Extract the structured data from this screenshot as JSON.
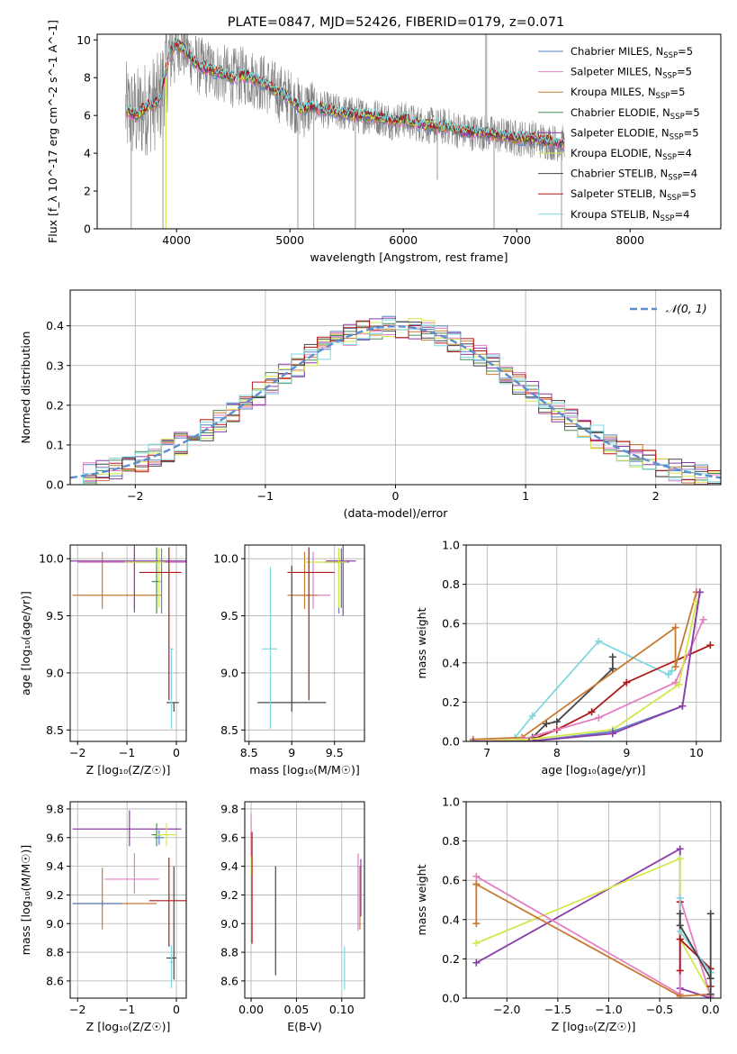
{
  "chart_data": [
    {
      "id": "spectrum",
      "type": "line",
      "title": "PLATE=0847, MJD=52426, FIBERID=0179, z=0.071",
      "xlabel": "wavelength [Angstrom, rest frame]",
      "ylabel": "Flux [f_λ 10^-17 erg cm^-2 s^-1 A^-1]",
      "xlim": [
        3300,
        8800
      ],
      "ylim": [
        0,
        10.3
      ],
      "xticks": [
        4000,
        5000,
        6000,
        7000,
        8000
      ],
      "yticks": [
        0,
        2,
        4,
        6,
        8,
        10
      ],
      "grid": false,
      "legend_position": "top-right",
      "observed_color": "#808080",
      "model_continuum": {
        "x": [
          3550,
          3650,
          3750,
          3850,
          3900,
          3950,
          4000,
          4100,
          4200,
          4300,
          4400,
          4500,
          4600,
          4700,
          4800,
          4900,
          5000,
          5100,
          5200,
          5300,
          5400,
          5500,
          5600,
          5700,
          5800,
          5900,
          6000,
          6100,
          6200,
          6300,
          6400,
          6500,
          6600,
          6700,
          6800,
          6900,
          7000,
          7100,
          7200,
          7300,
          7400
        ],
        "y": [
          6.3,
          6.0,
          6.5,
          6.8,
          8.2,
          9.5,
          9.8,
          9.3,
          8.6,
          8.4,
          8.2,
          8.0,
          8.1,
          7.9,
          7.6,
          7.2,
          6.9,
          6.3,
          6.5,
          6.3,
          6.2,
          6.1,
          6.0,
          6.0,
          5.9,
          5.7,
          5.8,
          5.6,
          5.5,
          5.4,
          5.4,
          5.2,
          5.1,
          5.1,
          5.0,
          4.9,
          4.8,
          4.8,
          4.7,
          4.6,
          4.5
        ]
      },
      "legend": [
        {
          "label": "Chabrier MILES, N",
          "sub": "SSP",
          "tail": "=5",
          "color": "#5b84c4"
        },
        {
          "label": "Salpeter MILES, N",
          "sub": "SSP",
          "tail": "=5",
          "color": "#e57ec2"
        },
        {
          "label": "Kroupa MILES, N",
          "sub": "SSP",
          "tail": "=5",
          "color": "#c77a32"
        },
        {
          "label": "Chabrier ELODIE, N",
          "sub": "SSP",
          "tail": "=5",
          "color": "#4a8c55"
        },
        {
          "label": "Salpeter ELODIE, N",
          "sub": "SSP",
          "tail": "=5",
          "color": "#8c3da8"
        },
        {
          "label": "Kroupa ELODIE, N",
          "sub": "SSP",
          "tail": "=4",
          "color": "#d4e84a"
        },
        {
          "label": "Chabrier STELIB, N",
          "sub": "SSP",
          "tail": "=4",
          "color": "#444444"
        },
        {
          "label": "Salpeter STELIB, N",
          "sub": "SSP",
          "tail": "=5",
          "color": "#b01818"
        },
        {
          "label": "Kroupa STELIB, N",
          "sub": "SSP",
          "tail": "=4",
          "color": "#7fd8e0"
        }
      ]
    },
    {
      "id": "residuals",
      "type": "histogram",
      "xlabel": "(data-model)/error",
      "ylabel": "Normed distribution",
      "xlim": [
        -2.5,
        2.5
      ],
      "ylim": [
        0,
        0.49
      ],
      "xticks": [
        -2,
        -1,
        0,
        1,
        2
      ],
      "yticks": [
        0.0,
        0.1,
        0.2,
        0.3,
        0.4
      ],
      "grid": true,
      "legend_position": "top-right",
      "legend_label": "𝒩(0, 1)",
      "gaussian_color": "#5b8fd0",
      "bin_width": 0.1,
      "series_colors": [
        "#5b84c4",
        "#e57ec2",
        "#c77a32",
        "#4a8c55",
        "#8c3da8",
        "#d4e84a",
        "#444444",
        "#b01818",
        "#7fd8e0"
      ]
    },
    {
      "id": "age-vs-z",
      "type": "errorbar",
      "xlabel": "Z [log₁₀(Z/Z☉)]",
      "ylabel": "age  [log₁₀(age/yr)]",
      "xlim": [
        -2.15,
        0.2
      ],
      "ylim": [
        8.4,
        10.12
      ],
      "xticks": [
        -2,
        -1,
        0
      ],
      "yticks": [
        8.5,
        9.0,
        9.5,
        10.0
      ],
      "grid": true,
      "points": [
        {
          "color": "#5b84c4",
          "x": -0.3,
          "xerr": [
            1.7,
            0.45
          ],
          "y": 9.97,
          "yerr": [
            0.45,
            0.12
          ]
        },
        {
          "color": "#e57ec2",
          "x": -0.85,
          "xerr": [
            1.15,
            1.05
          ],
          "y": 9.97,
          "yerr": [
            0.4,
            0.12
          ]
        },
        {
          "color": "#c77a32",
          "x": -1.5,
          "xerr": [
            0.6,
            1.2
          ],
          "y": 9.68,
          "yerr": [
            0.12,
            0.38
          ]
        },
        {
          "color": "#4a8c55",
          "x": -0.4,
          "xerr": [
            0.1,
            0.08
          ],
          "y": 9.8,
          "yerr": [
            0.28,
            0.3
          ]
        },
        {
          "color": "#8c3da8",
          "x": -0.85,
          "xerr": [
            1.3,
            1.1
          ],
          "y": 9.98,
          "yerr": [
            0.45,
            0.14
          ]
        },
        {
          "color": "#d4e84a",
          "x": -0.35,
          "xerr": [
            0.7,
            0.12
          ],
          "y": 9.97,
          "yerr": [
            0.4,
            0.12
          ]
        },
        {
          "color": "#444444",
          "x": -0.05,
          "xerr": [
            0.15,
            0.1
          ],
          "y": 8.74,
          "yerr": [
            0.08,
            0.0
          ]
        },
        {
          "color": "#b01818",
          "x": -0.15,
          "xerr": [
            0.6,
            0.25
          ],
          "y": 9.88,
          "yerr": [
            1.12,
            0.22
          ]
        },
        {
          "color": "#7fd8e0",
          "x": -0.1,
          "xerr": [
            0.05,
            0.04
          ],
          "y": 9.21,
          "yerr": [
            0.7,
            0.0
          ]
        }
      ]
    },
    {
      "id": "age-vs-mass",
      "type": "errorbar",
      "xlabel": "mass [log₁₀(M/M☉)]",
      "ylabel": "",
      "xlim": [
        8.45,
        9.85
      ],
      "ylim": [
        8.4,
        10.12
      ],
      "xticks": [
        8.5,
        9.0,
        9.5
      ],
      "yticks": [
        8.5,
        9.0,
        9.5,
        10.0
      ],
      "grid": true,
      "points": [
        {
          "color": "#5b84c4",
          "x": 9.55,
          "xerr": [
            0.2,
            0.12
          ],
          "y": 9.97,
          "yerr": [
            0.45,
            0.12
          ]
        },
        {
          "color": "#e57ec2",
          "x": 9.25,
          "xerr": [
            0.15,
            0.2
          ],
          "y": 9.68,
          "yerr": [
            0.12,
            0.38
          ]
        },
        {
          "color": "#c77a32",
          "x": 9.15,
          "xerr": [
            0.2,
            0.15
          ],
          "y": 9.68,
          "yerr": [
            0.12,
            0.38
          ]
        },
        {
          "color": "#4a8c55",
          "x": 9.58,
          "xerr": [
            0.15,
            0.05
          ],
          "y": 9.97,
          "yerr": [
            0.4,
            0.12
          ]
        },
        {
          "color": "#8c3da8",
          "x": 9.6,
          "xerr": [
            0.2,
            0.15
          ],
          "y": 9.98,
          "yerr": [
            0.48,
            0.14
          ]
        },
        {
          "color": "#d4e84a",
          "x": 9.55,
          "xerr": [
            0.4,
            0.1
          ],
          "y": 9.97,
          "yerr": [
            0.4,
            0.12
          ]
        },
        {
          "color": "#444444",
          "x": 9.0,
          "xerr": [
            0.4,
            0.4
          ],
          "y": 8.74,
          "yerr": [
            0.08,
            1.2
          ]
        },
        {
          "color": "#b01818",
          "x": 9.2,
          "xerr": [
            0.25,
            0.3
          ],
          "y": 9.88,
          "yerr": [
            1.12,
            0.22
          ]
        },
        {
          "color": "#7fd8e0",
          "x": 8.75,
          "xerr": [
            0.1,
            0.08
          ],
          "y": 9.21,
          "yerr": [
            0.7,
            0.72
          ]
        }
      ]
    },
    {
      "id": "weight-vs-age",
      "type": "line",
      "xlabel": "age  [log₁₀(age/yr)]",
      "ylabel": "mass weight",
      "xlim": [
        6.7,
        10.35
      ],
      "ylim": [
        0,
        1.0
      ],
      "xticks": [
        7,
        8,
        9,
        10
      ],
      "yticks": [
        0.0,
        0.2,
        0.4,
        0.6,
        0.8,
        1.0
      ],
      "grid": true,
      "series": [
        {
          "color": "#444444",
          "x": [
            7.65,
            7.85,
            8.0,
            8.8,
            8.8
          ],
          "y": [
            0.02,
            0.09,
            0.1,
            0.37,
            0.43
          ]
        },
        {
          "color": "#7fd8e0",
          "x": [
            7.4,
            7.65,
            8.6,
            9.6,
            9.65
          ],
          "y": [
            0.02,
            0.13,
            0.51,
            0.34,
            0.36
          ]
        },
        {
          "color": "#b01818",
          "x": [
            7.65,
            8.0,
            8.5,
            9.0,
            10.2
          ],
          "y": [
            0.01,
            0.06,
            0.15,
            0.3,
            0.49
          ]
        },
        {
          "color": "#c77a32",
          "x": [
            6.8,
            7.5,
            9.7,
            9.7,
            10.0
          ],
          "y": [
            0.01,
            0.02,
            0.58,
            0.38,
            0.76
          ]
        },
        {
          "color": "#e57ec2",
          "x": [
            6.8,
            7.5,
            8.6,
            9.7,
            10.1
          ],
          "y": [
            0.0,
            0.01,
            0.12,
            0.3,
            0.62
          ]
        },
        {
          "color": "#d4e84a",
          "x": [
            6.8,
            7.6,
            8.8,
            9.75,
            10.0
          ],
          "y": [
            0.0,
            0.01,
            0.06,
            0.29,
            0.71
          ]
        },
        {
          "color": "#5b84c4",
          "x": [
            6.8,
            7.6,
            8.8,
            9.8,
            10.05
          ],
          "y": [
            0.0,
            0.0,
            0.05,
            0.18,
            0.76
          ]
        },
        {
          "color": "#8c3da8",
          "x": [
            6.8,
            7.6,
            8.8,
            9.8,
            10.05
          ],
          "y": [
            0.0,
            0.0,
            0.04,
            0.18,
            0.76
          ]
        }
      ]
    },
    {
      "id": "mass-vs-z",
      "type": "errorbar",
      "xlabel": "Z [log₁₀(Z/Z☉)]",
      "ylabel": "mass [log₁₀(M/M☉)]",
      "xlim": [
        -2.15,
        0.2
      ],
      "ylim": [
        8.48,
        9.85
      ],
      "xticks": [
        -2,
        -1,
        0
      ],
      "yticks": [
        8.6,
        8.8,
        9.0,
        9.2,
        9.4,
        9.6,
        9.8
      ],
      "grid": true,
      "points": [
        {
          "color": "#5b84c4",
          "x": -0.35,
          "xerr": [
            0.1,
            0.1
          ],
          "y": 9.6,
          "yerr": [
            0.05,
            0.05
          ]
        },
        {
          "color": "#e57ec2",
          "x": -0.85,
          "xerr": [
            0.6,
            0.5
          ],
          "y": 9.31,
          "yerr": [
            0.1,
            0.18
          ]
        },
        {
          "color": "#c77a32",
          "x": -1.5,
          "xerr": [
            0.6,
            1.1
          ],
          "y": 9.14,
          "yerr": [
            0.18,
            0.25
          ]
        },
        {
          "color": "#4a8c55",
          "x": -0.4,
          "xerr": [
            0.1,
            0.1
          ],
          "y": 9.62,
          "yerr": [
            0.08,
            0.08
          ]
        },
        {
          "color": "#8c3da8",
          "x": -0.95,
          "xerr": [
            1.15,
            1.05
          ],
          "y": 9.66,
          "yerr": [
            0.12,
            0.13
          ]
        },
        {
          "color": "#d4e84a",
          "x": -0.2,
          "xerr": [
            0.2,
            0.2
          ],
          "y": 9.62,
          "yerr": [
            0.08,
            0.08
          ]
        },
        {
          "color": "#444444",
          "x": -0.05,
          "xerr": [
            0.15,
            0.05
          ],
          "y": 8.76,
          "yerr": [
            0.15,
            0.64
          ]
        },
        {
          "color": "#b01818",
          "x": -0.15,
          "xerr": [
            0.4,
            0.35
          ],
          "y": 9.16,
          "yerr": [
            0.32,
            0.3
          ]
        },
        {
          "color": "#7fd8e0",
          "x": -0.1,
          "xerr": [
            0.04,
            0.04
          ],
          "y": 8.73,
          "yerr": [
            0.18,
            0.12
          ]
        },
        {
          "color": "#5b84c4",
          "x": -1.5,
          "xerr": [
            0.6,
            0.4
          ],
          "y": 9.14,
          "yerr": [
            0.02,
            0.02
          ]
        }
      ]
    },
    {
      "id": "mass-vs-ebv",
      "type": "errorbar",
      "xlabel": "E(B-V)",
      "ylabel": "",
      "xlim": [
        -0.007,
        0.125
      ],
      "ylim": [
        8.48,
        9.85
      ],
      "xticks": [
        0.0,
        0.05,
        0.1
      ],
      "tick_labels": [
        "0.00",
        "0.05",
        "0.10"
      ],
      "yticks": [
        8.6,
        8.8,
        9.0,
        9.2,
        9.4,
        9.6,
        9.8
      ],
      "grid": true,
      "points": [
        {
          "color": "#d4e84a",
          "x": 0.0,
          "xerr": [
            0,
            0
          ],
          "y": 9.55,
          "yerr": [
            0.22,
            0.15
          ]
        },
        {
          "color": "#e57ec2",
          "x": 0.0,
          "xerr": [
            0,
            0
          ],
          "y": 9.62,
          "yerr": [
            0.15,
            0.15
          ]
        },
        {
          "color": "#b01818",
          "x": 0.001,
          "xerr": [
            0,
            0
          ],
          "y": 9.26,
          "yerr": [
            0.4,
            0.38
          ]
        },
        {
          "color": "#444444",
          "x": 0.027,
          "xerr": [
            0,
            0
          ],
          "y": 9.02,
          "yerr": [
            0.38,
            0.38
          ]
        },
        {
          "color": "#7fd8e0",
          "x": 0.103,
          "xerr": [
            0,
            0
          ],
          "y": 8.74,
          "yerr": [
            0.2,
            0.1
          ]
        },
        {
          "color": "#e57ec2",
          "x": 0.118,
          "xerr": [
            0,
            0
          ],
          "y": 9.22,
          "yerr": [
            0.27,
            0.27
          ]
        },
        {
          "color": "#c77a32",
          "x": 0.12,
          "xerr": [
            0,
            0
          ],
          "y": 9.18,
          "yerr": [
            0.22,
            0.22
          ]
        },
        {
          "color": "#8c3da8",
          "x": 0.121,
          "xerr": [
            0,
            0
          ],
          "y": 9.25,
          "yerr": [
            0.2,
            0.2
          ]
        }
      ]
    },
    {
      "id": "weight-vs-z",
      "type": "line",
      "xlabel": "Z [log₁₀(Z/Z☉)]",
      "ylabel": "mass weight",
      "xlim": [
        -2.4,
        0.1
      ],
      "ylim": [
        0,
        1.0
      ],
      "xticks": [
        -2.0,
        -1.5,
        -1.0,
        -0.5,
        0.0
      ],
      "tick_labels": [
        "−2.0",
        "−1.5",
        "−1.0",
        "−0.5",
        "0.0"
      ],
      "yticks": [
        0.0,
        0.2,
        0.4,
        0.6,
        0.8,
        1.0
      ],
      "grid": true,
      "series": [
        {
          "color": "#8c3da8",
          "x": [
            -2.3,
            -0.3,
            -0.3,
            0.0
          ],
          "y": [
            0.18,
            0.76,
            0.05,
            0.0
          ]
        },
        {
          "color": "#d4e84a",
          "x": [
            -2.3,
            -0.3,
            -0.3,
            0.0
          ],
          "y": [
            0.28,
            0.71,
            0.3,
            0.02
          ]
        },
        {
          "color": "#e57ec2",
          "x": [
            -2.3,
            -0.3,
            -0.3,
            0.0
          ],
          "y": [
            0.62,
            0.02,
            0.51,
            0.01
          ]
        },
        {
          "color": "#c77a32",
          "x": [
            -2.3,
            -2.3,
            -2.3,
            -0.3,
            0.0
          ],
          "y": [
            0.58,
            0.38,
            0.58,
            0.01,
            0.02
          ]
        },
        {
          "color": "#b01818",
          "x": [
            -0.3,
            -0.3,
            -0.3,
            0.0,
            0.0
          ],
          "y": [
            0.14,
            0.49,
            0.3,
            0.15,
            0.06
          ]
        },
        {
          "color": "#7fd8e0",
          "x": [
            -0.3,
            -0.3,
            0.0,
            0.0
          ],
          "y": [
            0.51,
            0.34,
            0.13,
            0.02
          ]
        },
        {
          "color": "#444444",
          "x": [
            -0.3,
            -0.3,
            0.0,
            0.0,
            0.0
          ],
          "y": [
            0.43,
            0.37,
            0.1,
            0.02,
            0.43
          ]
        }
      ]
    }
  ]
}
